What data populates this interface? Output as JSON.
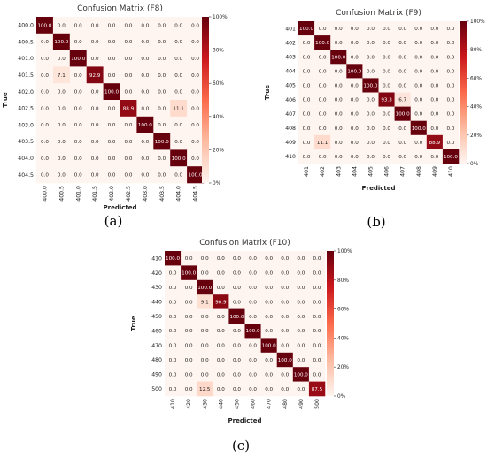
{
  "colorbar_ticks": [
    "0%",
    "20%",
    "40%",
    "60%",
    "80%",
    "100%"
  ],
  "colormap": {
    "low": "#fff5f0",
    "mid": "#fb6a4a",
    "high": "#67000d"
  },
  "chart_data": [
    {
      "type": "heatmap",
      "title": "Confusion Matrix (F8)",
      "caption": "(a)",
      "xlabel": "Predicted",
      "ylabel": "True",
      "vmin": 0,
      "vmax": 100,
      "categories": [
        "400.0",
        "400.5",
        "401.0",
        "401.5",
        "402.0",
        "402.5",
        "403.0",
        "403.5",
        "404.0",
        "404.5"
      ],
      "values": [
        [
          100.0,
          0.0,
          0.0,
          0.0,
          0.0,
          0.0,
          0.0,
          0.0,
          0.0,
          0.0
        ],
        [
          0.0,
          100.0,
          0.0,
          0.0,
          0.0,
          0.0,
          0.0,
          0.0,
          0.0,
          0.0
        ],
        [
          0.0,
          0.0,
          100.0,
          0.0,
          0.0,
          0.0,
          0.0,
          0.0,
          0.0,
          0.0
        ],
        [
          0.0,
          7.1,
          0.0,
          92.9,
          0.0,
          0.0,
          0.0,
          0.0,
          0.0,
          0.0
        ],
        [
          0.0,
          0.0,
          0.0,
          0.0,
          100.0,
          0.0,
          0.0,
          0.0,
          0.0,
          0.0
        ],
        [
          0.0,
          0.0,
          0.0,
          0.0,
          0.0,
          88.9,
          0.0,
          0.0,
          11.1,
          0.0
        ],
        [
          0.0,
          0.0,
          0.0,
          0.0,
          0.0,
          0.0,
          100.0,
          0.0,
          0.0,
          0.0
        ],
        [
          0.0,
          0.0,
          0.0,
          0.0,
          0.0,
          0.0,
          0.0,
          100.0,
          0.0,
          0.0
        ],
        [
          0.0,
          0.0,
          0.0,
          0.0,
          0.0,
          0.0,
          0.0,
          0.0,
          100.0,
          0.0
        ],
        [
          0.0,
          0.0,
          0.0,
          0.0,
          0.0,
          0.0,
          0.0,
          0.0,
          0.0,
          100.0
        ]
      ]
    },
    {
      "type": "heatmap",
      "title": "Confusion Matrix (F9)",
      "caption": "(b)",
      "xlabel": "Predicted",
      "ylabel": "True",
      "vmin": 0,
      "vmax": 100,
      "categories": [
        "401",
        "402",
        "403",
        "404",
        "405",
        "406",
        "407",
        "408",
        "409",
        "410"
      ],
      "values": [
        [
          100.0,
          0.0,
          0.0,
          0.0,
          0.0,
          0.0,
          0.0,
          0.0,
          0.0,
          0.0
        ],
        [
          0.0,
          100.0,
          0.0,
          0.0,
          0.0,
          0.0,
          0.0,
          0.0,
          0.0,
          0.0
        ],
        [
          0.0,
          0.0,
          100.0,
          0.0,
          0.0,
          0.0,
          0.0,
          0.0,
          0.0,
          0.0
        ],
        [
          0.0,
          0.0,
          0.0,
          100.0,
          0.0,
          0.0,
          0.0,
          0.0,
          0.0,
          0.0
        ],
        [
          0.0,
          0.0,
          0.0,
          0.0,
          100.0,
          0.0,
          0.0,
          0.0,
          0.0,
          0.0
        ],
        [
          0.0,
          0.0,
          0.0,
          0.0,
          0.0,
          93.3,
          6.7,
          0.0,
          0.0,
          0.0
        ],
        [
          0.0,
          0.0,
          0.0,
          0.0,
          0.0,
          0.0,
          100.0,
          0.0,
          0.0,
          0.0
        ],
        [
          0.0,
          0.0,
          0.0,
          0.0,
          0.0,
          0.0,
          0.0,
          100.0,
          0.0,
          0.0
        ],
        [
          0.0,
          11.1,
          0.0,
          0.0,
          0.0,
          0.0,
          0.0,
          0.0,
          88.9,
          0.0
        ],
        [
          0.0,
          0.0,
          0.0,
          0.0,
          0.0,
          0.0,
          0.0,
          0.0,
          0.0,
          100.0
        ]
      ]
    },
    {
      "type": "heatmap",
      "title": "Confusion Matrix (F10)",
      "caption": "(c)",
      "xlabel": "Predicted",
      "ylabel": "True",
      "vmin": 0,
      "vmax": 100,
      "categories": [
        "410",
        "420",
        "430",
        "440",
        "450",
        "460",
        "470",
        "480",
        "490",
        "500"
      ],
      "values": [
        [
          100.0,
          0.0,
          0.0,
          0.0,
          0.0,
          0.0,
          0.0,
          0.0,
          0.0,
          0.0
        ],
        [
          0.0,
          100.0,
          0.0,
          0.0,
          0.0,
          0.0,
          0.0,
          0.0,
          0.0,
          0.0
        ],
        [
          0.0,
          0.0,
          100.0,
          0.0,
          0.0,
          0.0,
          0.0,
          0.0,
          0.0,
          0.0
        ],
        [
          0.0,
          0.0,
          9.1,
          90.9,
          0.0,
          0.0,
          0.0,
          0.0,
          0.0,
          0.0
        ],
        [
          0.0,
          0.0,
          0.0,
          0.0,
          100.0,
          0.0,
          0.0,
          0.0,
          0.0,
          0.0
        ],
        [
          0.0,
          0.0,
          0.0,
          0.0,
          0.0,
          100.0,
          0.0,
          0.0,
          0.0,
          0.0
        ],
        [
          0.0,
          0.0,
          0.0,
          0.0,
          0.0,
          0.0,
          100.0,
          0.0,
          0.0,
          0.0
        ],
        [
          0.0,
          0.0,
          0.0,
          0.0,
          0.0,
          0.0,
          0.0,
          100.0,
          0.0,
          0.0
        ],
        [
          0.0,
          0.0,
          0.0,
          0.0,
          0.0,
          0.0,
          0.0,
          0.0,
          100.0,
          0.0
        ],
        [
          0.0,
          0.0,
          12.5,
          0.0,
          0.0,
          0.0,
          0.0,
          0.0,
          0.0,
          87.5
        ]
      ]
    }
  ]
}
